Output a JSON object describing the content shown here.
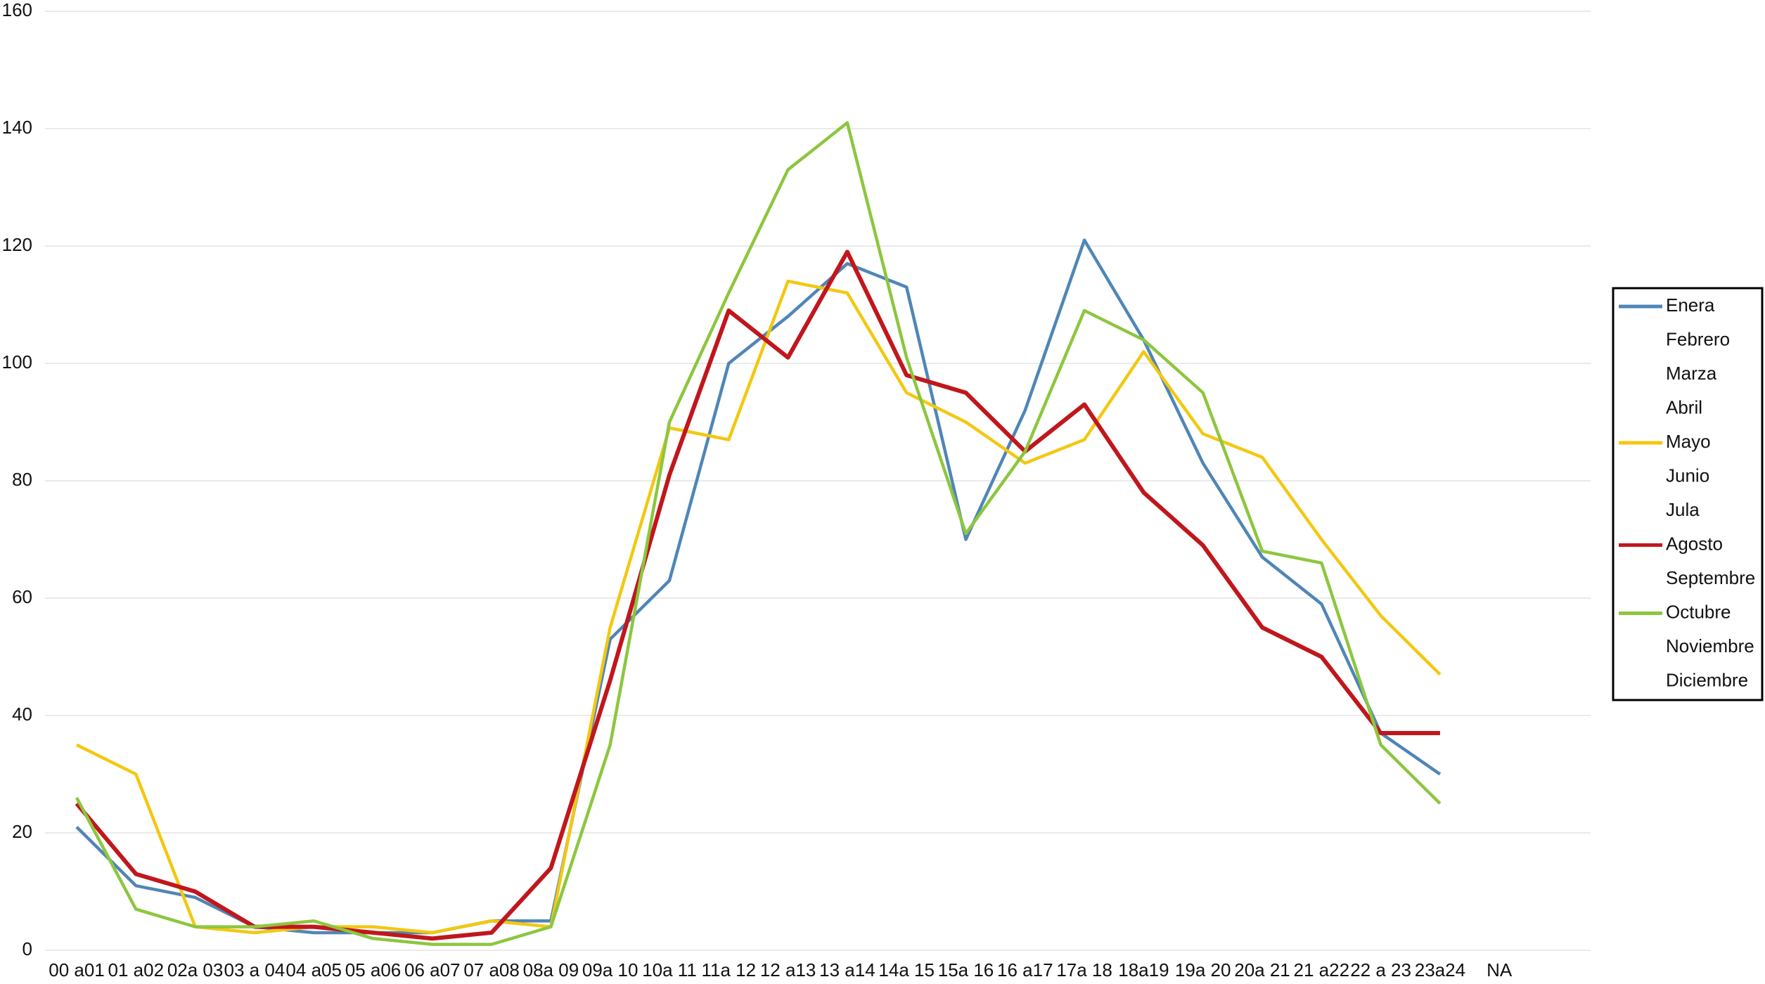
{
  "chart_data": {
    "type": "line",
    "categories": [
      "00 a01",
      "01 a02",
      "02a 03",
      "03 a 04",
      "04 a05",
      "05 a06",
      "06 a07",
      "07 a08",
      "08a 09",
      "09a 10",
      "10a 11",
      "11a 12",
      "12 a13",
      "13 a14",
      "14a 15",
      "15a 16",
      "16 a17",
      "17a 18",
      "18a19",
      "19a 20",
      "20a 21",
      "21 a22",
      "22 a 23",
      "23a24",
      "NA"
    ],
    "series": [
      {
        "name": "Enera",
        "color": "#4f86b6",
        "values": [
          21,
          11,
          9,
          4,
          3,
          3,
          3,
          5,
          5,
          53,
          63,
          100,
          108,
          117,
          113,
          70,
          92,
          121,
          104,
          83,
          67,
          59,
          37,
          30,
          null
        ]
      },
      {
        "name": "Febrero",
        "values": [
          null,
          null,
          null,
          null,
          null,
          null,
          null,
          null,
          null,
          null,
          null,
          null,
          null,
          null,
          null,
          null,
          null,
          null,
          null,
          null,
          null,
          null,
          null,
          null,
          null
        ]
      },
      {
        "name": "Marza",
        "values": [
          null,
          null,
          null,
          null,
          null,
          null,
          null,
          null,
          null,
          null,
          null,
          null,
          null,
          null,
          null,
          null,
          null,
          null,
          null,
          null,
          null,
          null,
          null,
          null,
          null
        ]
      },
      {
        "name": "Abril",
        "values": [
          null,
          null,
          null,
          null,
          null,
          null,
          null,
          null,
          null,
          null,
          null,
          null,
          null,
          null,
          null,
          null,
          null,
          null,
          null,
          null,
          null,
          null,
          null,
          null,
          null
        ]
      },
      {
        "name": "Mayo",
        "color": "#f2c811",
        "values": [
          35,
          30,
          4,
          3,
          4,
          4,
          3,
          5,
          4,
          55,
          89,
          87,
          114,
          112,
          95,
          90,
          83,
          87,
          102,
          88,
          84,
          70,
          57,
          47,
          null
        ]
      },
      {
        "name": "Junio",
        "values": [
          null,
          null,
          null,
          null,
          null,
          null,
          null,
          null,
          null,
          null,
          null,
          null,
          null,
          null,
          null,
          null,
          null,
          null,
          null,
          null,
          null,
          null,
          null,
          null,
          null
        ]
      },
      {
        "name": "Jula",
        "values": [
          null,
          null,
          null,
          null,
          null,
          null,
          null,
          null,
          null,
          null,
          null,
          null,
          null,
          null,
          null,
          null,
          null,
          null,
          null,
          null,
          null,
          null,
          null,
          null,
          null
        ]
      },
      {
        "name": "Agosto",
        "color": "#c0171c",
        "values": [
          25,
          13,
          10,
          4,
          4,
          3,
          2,
          3,
          14,
          46,
          81,
          109,
          101,
          119,
          98,
          95,
          85,
          93,
          78,
          69,
          55,
          50,
          37,
          37,
          null
        ]
      },
      {
        "name": "Septembre",
        "values": [
          null,
          null,
          null,
          null,
          null,
          null,
          null,
          null,
          null,
          null,
          null,
          null,
          null,
          null,
          null,
          null,
          null,
          null,
          null,
          null,
          null,
          null,
          null,
          null,
          null
        ]
      },
      {
        "name": "Octubre",
        "color": "#8dc63f",
        "values": [
          26,
          7,
          4,
          4,
          5,
          2,
          1,
          1,
          4,
          35,
          90,
          112,
          133,
          141,
          101,
          71,
          85,
          109,
          104,
          95,
          68,
          66,
          35,
          25,
          null
        ]
      },
      {
        "name": "Noviembre",
        "values": [
          null,
          null,
          null,
          null,
          null,
          null,
          null,
          null,
          null,
          null,
          null,
          null,
          null,
          null,
          null,
          null,
          null,
          null,
          null,
          null,
          null,
          null,
          null,
          null,
          null
        ]
      },
      {
        "name": "Diciembre",
        "values": [
          null,
          null,
          null,
          null,
          null,
          null,
          null,
          null,
          null,
          null,
          null,
          null,
          null,
          null,
          null,
          null,
          null,
          null,
          null,
          null,
          null,
          null,
          null,
          null,
          null
        ]
      }
    ],
    "ylim": [
      0,
      160
    ],
    "yticks": [
      0,
      20,
      40,
      60,
      80,
      100,
      120,
      140,
      160
    ],
    "grid": true,
    "legend": "right"
  }
}
